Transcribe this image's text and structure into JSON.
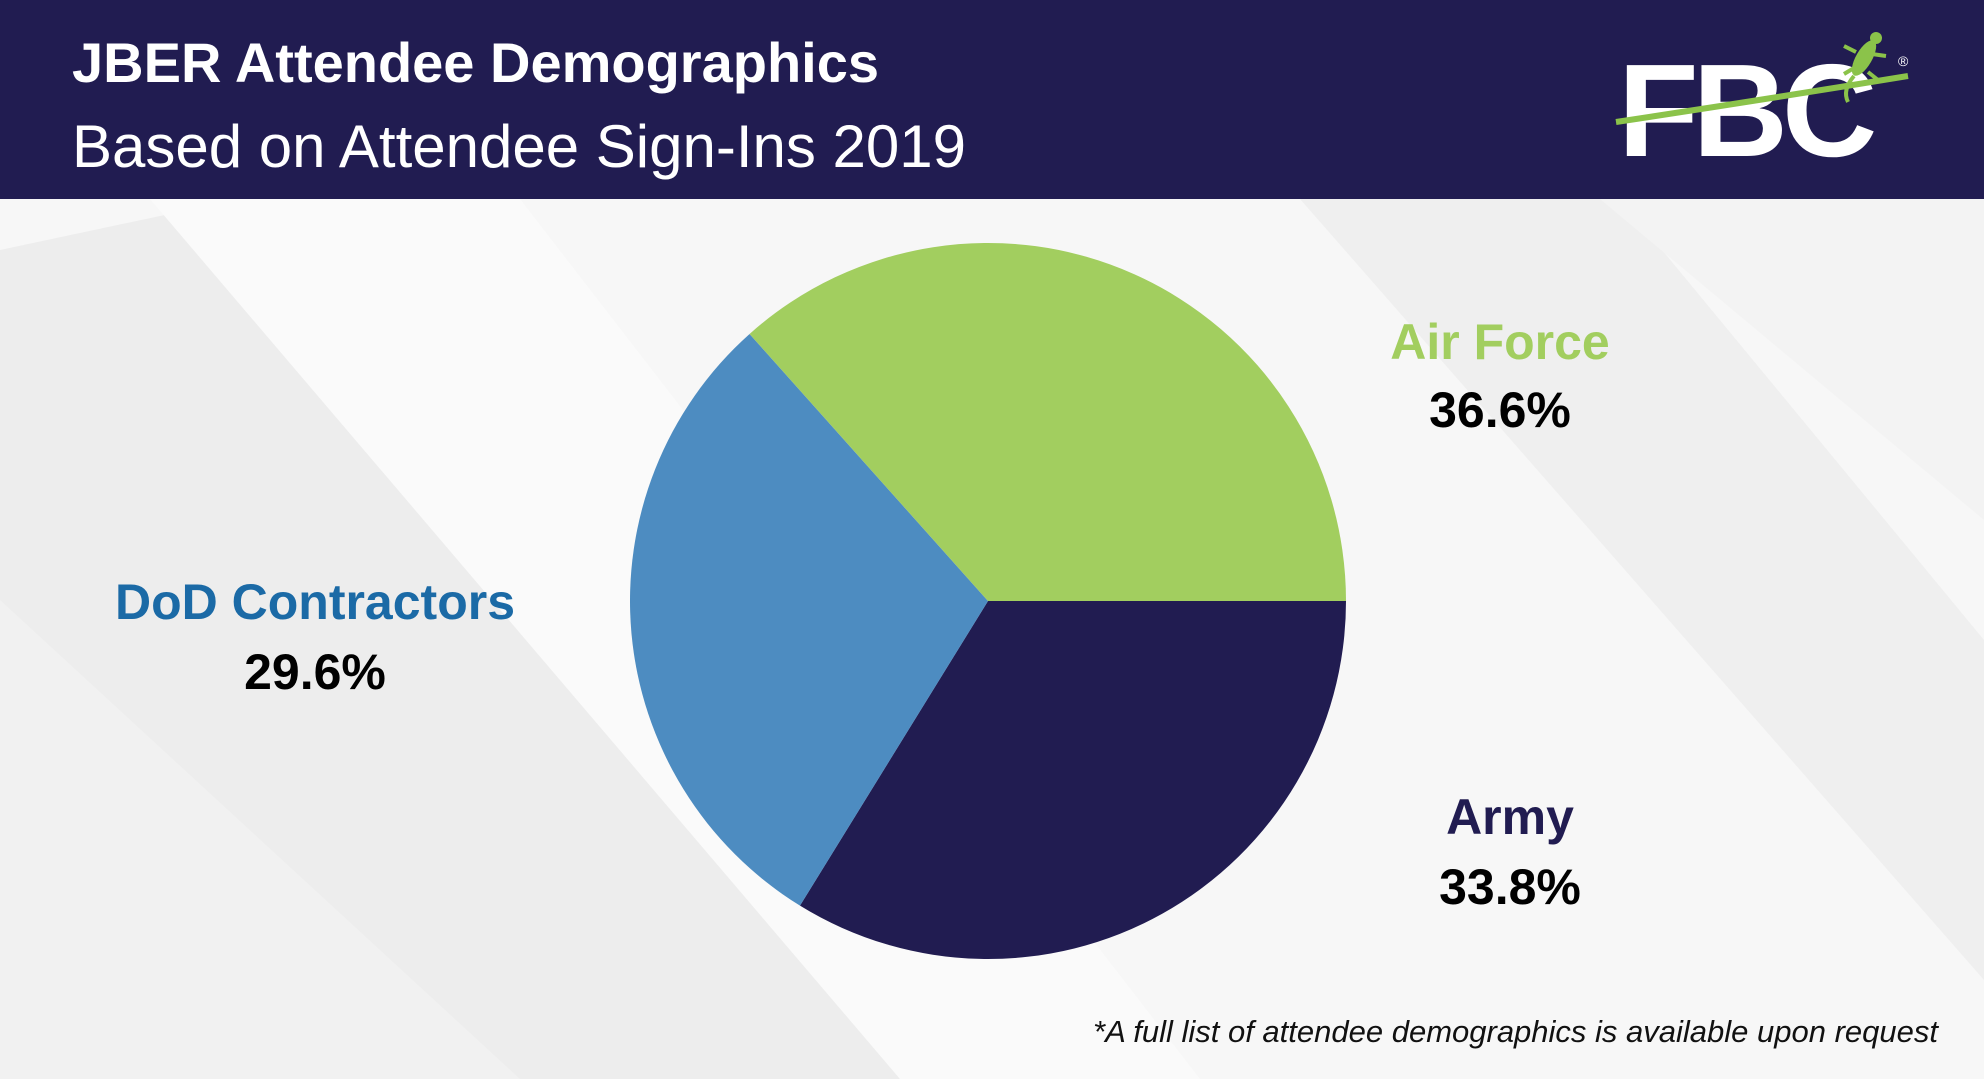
{
  "header": {
    "title": "JBER Attendee Demographics",
    "subtitle": "Based on Attendee Sign-Ins 2019"
  },
  "logo": {
    "text": "FBC",
    "mark": "®",
    "icon": "gecko-icon"
  },
  "colors": {
    "header_bg": "#211c51",
    "air_force": "#a2ce5f",
    "army": "#211c51",
    "dod_contractors": "#4d8cc1",
    "dod_label": "#1b6aa6"
  },
  "chart_data": {
    "type": "pie",
    "title": "JBER Attendee Demographics",
    "subtitle": "Based on Attendee Sign-Ins 2019",
    "slices": [
      {
        "label": "Air Force",
        "value": 36.6,
        "display": "36.6%",
        "color": "#a2ce5f"
      },
      {
        "label": "Army",
        "value": 33.8,
        "display": "33.8%",
        "color": "#211c51"
      },
      {
        "label": "DoD Contractors",
        "value": 29.6,
        "display": "29.6%",
        "color": "#4d8cc1"
      }
    ],
    "legend": "none"
  },
  "footnote": "*A full list of attendee demographics is available upon request"
}
